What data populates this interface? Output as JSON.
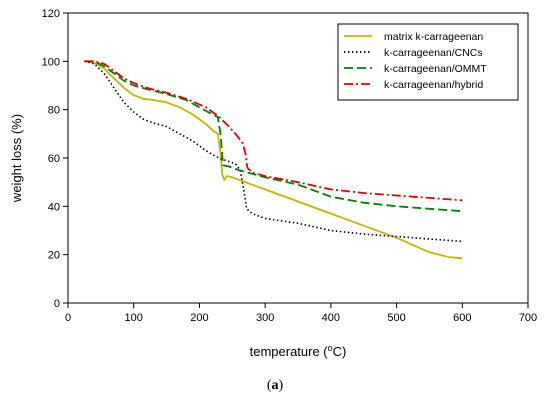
{
  "caption": {
    "open": "(",
    "letter": "a",
    "close": ")"
  },
  "chart_data": {
    "type": "line",
    "title": "",
    "xlabel_prefix": "temperature (",
    "xlabel_sup": "o",
    "xlabel_suffix": "C)",
    "ylabel": "weight loss (%)",
    "xlim": [
      0,
      700
    ],
    "ylim": [
      0,
      120
    ],
    "xticks": [
      0,
      100,
      200,
      300,
      400,
      500,
      600,
      700
    ],
    "yticks": [
      0,
      20,
      40,
      60,
      80,
      100,
      120
    ],
    "grid": false,
    "legend_position": "top-right",
    "series": [
      {
        "name": "matrix k-carrageenan",
        "color": "#c8b400",
        "style": "solid",
        "points": [
          [
            25,
            100
          ],
          [
            40,
            99.5
          ],
          [
            55,
            97
          ],
          [
            70,
            93
          ],
          [
            85,
            89
          ],
          [
            100,
            86
          ],
          [
            115,
            84.5
          ],
          [
            130,
            84
          ],
          [
            150,
            83
          ],
          [
            170,
            81
          ],
          [
            190,
            78
          ],
          [
            210,
            74
          ],
          [
            222,
            71
          ],
          [
            228,
            70
          ],
          [
            232,
            62
          ],
          [
            235,
            53
          ],
          [
            238,
            51
          ],
          [
            242,
            52.5
          ],
          [
            250,
            52
          ],
          [
            270,
            50
          ],
          [
            300,
            47
          ],
          [
            350,
            42
          ],
          [
            400,
            37
          ],
          [
            450,
            32
          ],
          [
            500,
            27
          ],
          [
            550,
            21
          ],
          [
            580,
            19
          ],
          [
            600,
            18.5
          ]
        ]
      },
      {
        "name": "k-carrageenan/CNCs",
        "color": "#000000",
        "style": "dotted",
        "points": [
          [
            25,
            100
          ],
          [
            40,
            99
          ],
          [
            55,
            95
          ],
          [
            70,
            89
          ],
          [
            85,
            83
          ],
          [
            100,
            79
          ],
          [
            115,
            76
          ],
          [
            130,
            74.5
          ],
          [
            150,
            73
          ],
          [
            170,
            70
          ],
          [
            190,
            67
          ],
          [
            210,
            63
          ],
          [
            230,
            60
          ],
          [
            245,
            58.5
          ],
          [
            255,
            57.5
          ],
          [
            262,
            55
          ],
          [
            268,
            46
          ],
          [
            272,
            39
          ],
          [
            280,
            37
          ],
          [
            300,
            35
          ],
          [
            350,
            33
          ],
          [
            400,
            30
          ],
          [
            450,
            28.5
          ],
          [
            500,
            27.5
          ],
          [
            550,
            26.5
          ],
          [
            600,
            25.5
          ]
        ]
      },
      {
        "name": "k-carrageenan/OMMT",
        "color": "#008000",
        "style": "dashed",
        "points": [
          [
            25,
            100
          ],
          [
            40,
            100
          ],
          [
            55,
            98
          ],
          [
            70,
            95
          ],
          [
            85,
            92
          ],
          [
            100,
            90
          ],
          [
            120,
            88.5
          ],
          [
            150,
            86.5
          ],
          [
            180,
            84
          ],
          [
            200,
            81
          ],
          [
            220,
            78
          ],
          [
            228,
            77
          ],
          [
            232,
            70
          ],
          [
            236,
            57
          ],
          [
            245,
            56.5
          ],
          [
            260,
            55
          ],
          [
            300,
            52
          ],
          [
            350,
            49
          ],
          [
            400,
            44
          ],
          [
            450,
            41.5
          ],
          [
            500,
            40
          ],
          [
            550,
            39
          ],
          [
            600,
            38
          ]
        ]
      },
      {
        "name": "k-carrageenan/hybrid",
        "color": "#e00000",
        "style": "dashdot",
        "points": [
          [
            25,
            100
          ],
          [
            40,
            100
          ],
          [
            55,
            99
          ],
          [
            70,
            96
          ],
          [
            85,
            93
          ],
          [
            100,
            91
          ],
          [
            120,
            89
          ],
          [
            150,
            87
          ],
          [
            180,
            84.5
          ],
          [
            210,
            81
          ],
          [
            230,
            77
          ],
          [
            245,
            73
          ],
          [
            258,
            69
          ],
          [
            266,
            66
          ],
          [
            270,
            62
          ],
          [
            273,
            56
          ],
          [
            280,
            54
          ],
          [
            300,
            52.5
          ],
          [
            350,
            50
          ],
          [
            400,
            47
          ],
          [
            450,
            45.5
          ],
          [
            500,
            44.5
          ],
          [
            550,
            43.5
          ],
          [
            600,
            42.5
          ]
        ]
      }
    ]
  }
}
